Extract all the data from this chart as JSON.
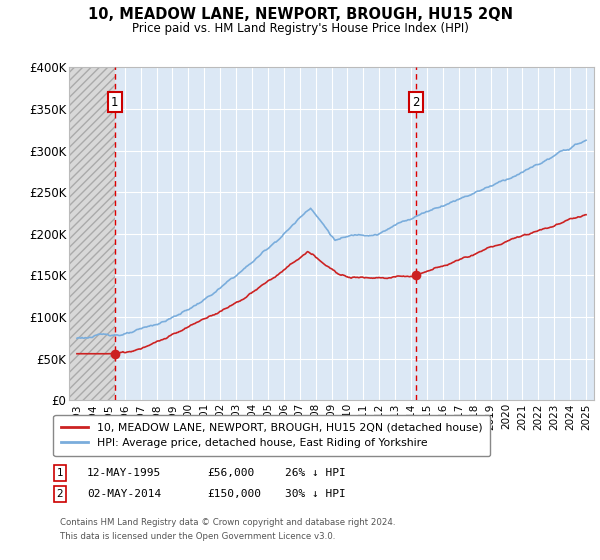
{
  "title": "10, MEADOW LANE, NEWPORT, BROUGH, HU15 2QN",
  "subtitle": "Price paid vs. HM Land Registry's House Price Index (HPI)",
  "sale1_date": 1995.37,
  "sale1_price": 56000,
  "sale1_label": "1",
  "sale2_date": 2014.33,
  "sale2_price": 150000,
  "sale2_label": "2",
  "xmin": 1993,
  "xmax": 2025,
  "ymin": 0,
  "ymax": 400000,
  "red_line_color": "#cc2222",
  "blue_line_color": "#7aaddc",
  "legend_label1": "10, MEADOW LANE, NEWPORT, BROUGH, HU15 2QN (detached house)",
  "legend_label2": "HPI: Average price, detached house, East Riding of Yorkshire",
  "footnote1": "Contains HM Land Registry data © Crown copyright and database right 2024.",
  "footnote2": "This data is licensed under the Open Government Licence v3.0.",
  "bg_hatch_color": "#d8d8d8",
  "bg_plot_color": "#dce8f5",
  "grid_color": "#ffffff",
  "ann1_date": "12-MAY-1995",
  "ann1_price": "£56,000",
  "ann1_hpi": "26% ↓ HPI",
  "ann2_date": "02-MAY-2014",
  "ann2_price": "£150,000",
  "ann2_hpi": "30% ↓ HPI"
}
